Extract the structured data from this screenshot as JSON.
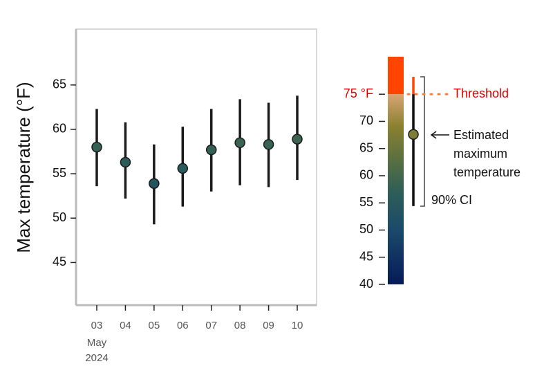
{
  "chart_data": {
    "type": "errorbar",
    "y_label": "Max temperature (°F)",
    "categories": [
      "03",
      "04",
      "05",
      "06",
      "07",
      "08",
      "09",
      "10"
    ],
    "x_month": "May",
    "x_year": "2024",
    "values": [
      58.0,
      56.3,
      53.9,
      55.6,
      57.7,
      58.5,
      58.3,
      58.9
    ],
    "lower": [
      53.6,
      52.2,
      49.3,
      51.3,
      53.0,
      53.7,
      53.5,
      54.3
    ],
    "upper": [
      62.3,
      60.8,
      58.3,
      60.3,
      62.3,
      63.4,
      63.0,
      63.8
    ],
    "ylim": [
      40.2,
      71.3
    ],
    "yticks": [
      45,
      50,
      55,
      60,
      65
    ],
    "colorbar": {
      "lim": [
        40,
        81.9
      ],
      "ticks": [
        40,
        45,
        50,
        55,
        60,
        65,
        70,
        {
          "value": 75,
          "label": "75 °F"
        }
      ],
      "colormap": [
        [
          40,
          "#061a58"
        ],
        [
          50,
          "#1a4a6a"
        ],
        [
          57,
          "#2e5e58"
        ],
        [
          63,
          "#5a7040"
        ],
        [
          69,
          "#8a8030"
        ],
        [
          75,
          "#d8a474"
        ]
      ],
      "above_color": "#ff4500"
    },
    "legend": {
      "estimate": 67.6,
      "lower": 54.4,
      "upper": 78.2,
      "threshold": 75,
      "threshold_label": "Threshold",
      "estimate_label": [
        "Estimated",
        "maximum",
        "temperature"
      ],
      "ci_label": "90% CI"
    }
  }
}
